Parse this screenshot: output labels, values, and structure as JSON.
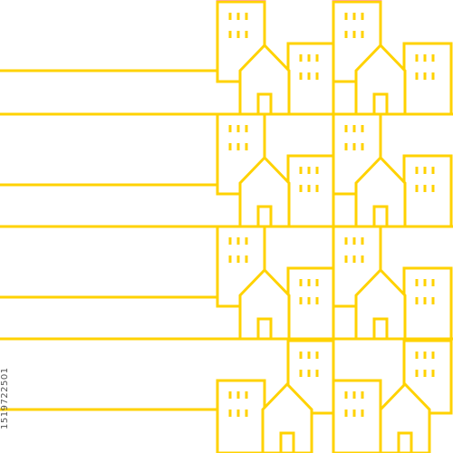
{
  "image_id_text": "1519722501",
  "watermark_text": "",
  "colors": {
    "gradient_top": "#3b1fa8",
    "gradient_mid": "#ff1e9c",
    "gradient_low": "#ff3b2f",
    "gradient_bottom": "#ffd200"
  },
  "icons": [
    "house-icon",
    "tall-building-icon",
    "window-icon",
    "door-icon",
    "roof-icon"
  ]
}
